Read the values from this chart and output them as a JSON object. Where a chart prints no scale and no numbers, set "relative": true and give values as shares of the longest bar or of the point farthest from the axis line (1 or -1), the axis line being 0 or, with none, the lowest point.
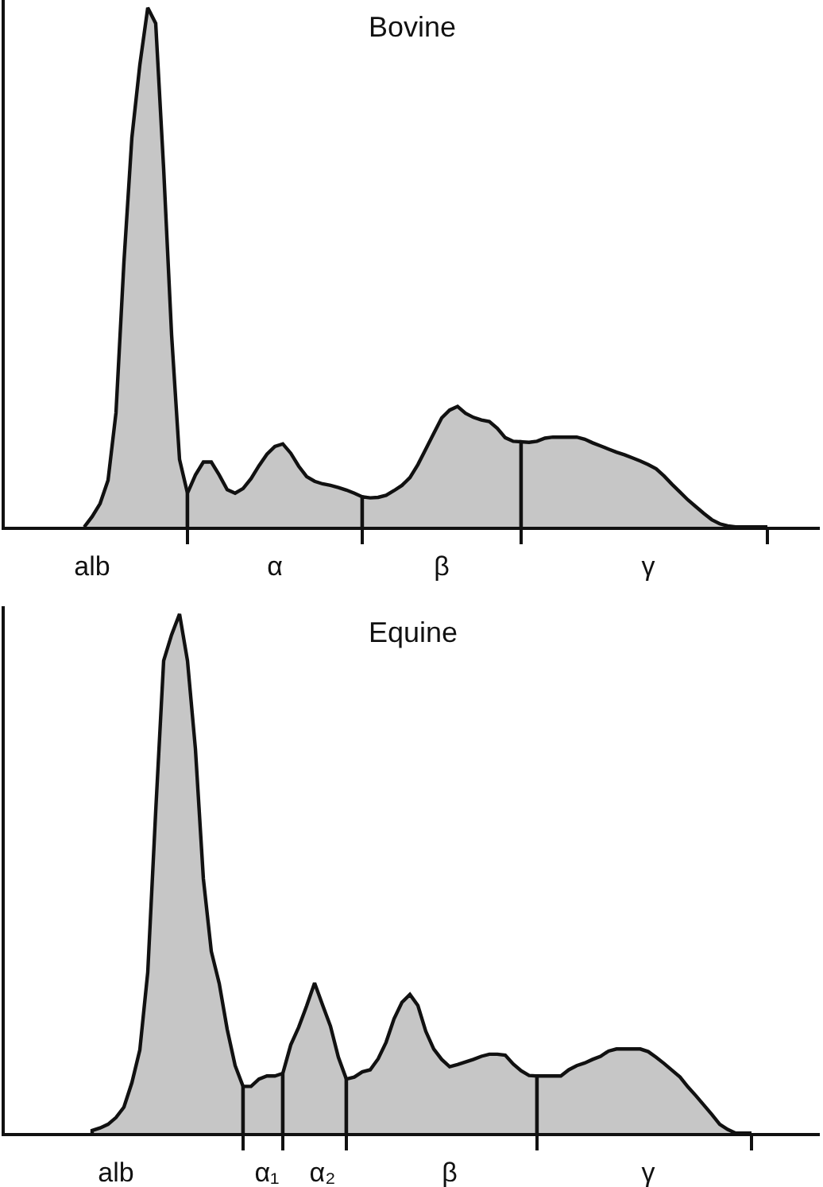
{
  "chart_data": [
    {
      "type": "area",
      "title": "Bovine",
      "relative": true,
      "tick_labels": "x",
      "categories": [
        null,
        null,
        null,
        null,
        null,
        null,
        null,
        null,
        null,
        null,
        null,
        "alb",
        null,
        null,
        null,
        null,
        null,
        null,
        null,
        null,
        null,
        null,
        null,
        null,
        null,
        null,
        null,
        null,
        null,
        null,
        null,
        null,
        null,
        null,
        "α",
        null,
        null,
        null,
        null,
        null,
        null,
        null,
        null,
        null,
        null,
        null,
        null,
        null,
        null,
        null,
        null,
        null,
        null,
        null,
        null,
        "β",
        null,
        null,
        null,
        null,
        null,
        null,
        null,
        null,
        null,
        null,
        null,
        null,
        null,
        null,
        null,
        null,
        null,
        null,
        null,
        null,
        null,
        null,
        null,
        null,
        null,
        "γ",
        null,
        null,
        null,
        null,
        null,
        null,
        null,
        null,
        null,
        null,
        null,
        null,
        null,
        null,
        null,
        null,
        null,
        null,
        null,
        null,
        null
      ],
      "series": [
        {
          "color": "#c6c6c6",
          "values": [
            null,
            null,
            null,
            null,
            null,
            null,
            null,
            null,
            null,
            null,
            0,
            0.02,
            0.045,
            0.09,
            0.22,
            0.51,
            0.75,
            0.89,
            1,
            0.97,
            0.69,
            0.37,
            0.13,
            0.065,
            null,
            null,
            null,
            null,
            null,
            null,
            null,
            null,
            null,
            null,
            null,
            null,
            null,
            null,
            null,
            null,
            null,
            null,
            null,
            null,
            null,
            null,
            null,
            null,
            null,
            null,
            null,
            null,
            null,
            null,
            null,
            null,
            null,
            null,
            null,
            null,
            null,
            null,
            null,
            null,
            null,
            null,
            null,
            null,
            null,
            null,
            null,
            null,
            null,
            null,
            null,
            null,
            null,
            null,
            null,
            null,
            null,
            null,
            null,
            null,
            null,
            null,
            null,
            null,
            null,
            null,
            null,
            null,
            null,
            null,
            null,
            null,
            null,
            null,
            null,
            null,
            null,
            null,
            null
          ]
        },
        {
          "color": "#c6c6c6",
          "values": [
            null,
            null,
            null,
            null,
            null,
            null,
            null,
            null,
            null,
            null,
            null,
            null,
            null,
            null,
            null,
            null,
            null,
            null,
            null,
            null,
            null,
            null,
            null,
            0.065,
            0.1,
            0.125,
            0.125,
            0.1,
            0.072,
            0.065,
            0.074,
            0.093,
            0.118,
            0.14,
            0.155,
            0.16,
            0.142,
            0.117,
            0.097,
            0.088,
            0.083,
            0.08,
            0.076,
            0.071,
            0.065,
            0.058,
            null,
            null,
            null,
            null,
            null,
            null,
            null,
            null,
            null,
            null,
            null,
            null,
            null,
            null,
            null,
            null,
            null,
            null,
            null,
            null,
            null,
            null,
            null,
            null,
            null,
            null,
            null,
            null,
            null,
            null,
            null,
            null,
            null,
            null,
            null,
            null,
            null,
            null,
            null,
            null,
            null,
            null,
            null,
            null,
            null,
            null,
            null,
            null,
            null,
            null,
            null,
            null,
            null,
            null,
            null,
            null,
            null
          ]
        },
        {
          "color": "#c6c6c6",
          "values": [
            null,
            null,
            null,
            null,
            null,
            null,
            null,
            null,
            null,
            null,
            null,
            null,
            null,
            null,
            null,
            null,
            null,
            null,
            null,
            null,
            null,
            null,
            null,
            null,
            null,
            null,
            null,
            null,
            null,
            null,
            null,
            null,
            null,
            null,
            null,
            null,
            null,
            null,
            null,
            null,
            null,
            null,
            null,
            null,
            null,
            0.058,
            0.056,
            0.057,
            0.061,
            0.07,
            0.08,
            0.095,
            0.12,
            0.15,
            0.18,
            0.21,
            0.225,
            0.232,
            0.219,
            0.211,
            0.206,
            0.203,
            0.19,
            0.172,
            0.165,
            0.164,
            null,
            null,
            null,
            null,
            null,
            null,
            null,
            null,
            null,
            null,
            null,
            null,
            null,
            null,
            null,
            null,
            null,
            null,
            null,
            null,
            null,
            null,
            null,
            null,
            null,
            null,
            null,
            null,
            null,
            null,
            null,
            null,
            null,
            null,
            null,
            null,
            null
          ]
        },
        {
          "color": "#c6c6c6",
          "values": [
            null,
            null,
            null,
            null,
            null,
            null,
            null,
            null,
            null,
            null,
            null,
            null,
            null,
            null,
            null,
            null,
            null,
            null,
            null,
            null,
            null,
            null,
            null,
            null,
            null,
            null,
            null,
            null,
            null,
            null,
            null,
            null,
            null,
            null,
            null,
            null,
            null,
            null,
            null,
            null,
            null,
            null,
            null,
            null,
            null,
            null,
            null,
            null,
            null,
            null,
            null,
            null,
            null,
            null,
            null,
            null,
            null,
            null,
            null,
            null,
            null,
            null,
            null,
            null,
            null,
            0.164,
            0.163,
            0.165,
            0.171,
            0.173,
            0.173,
            0.173,
            0.173,
            0.169,
            0.162,
            0.156,
            0.15,
            0.144,
            0.139,
            0.133,
            0.127,
            0.12,
            0.112,
            0.098,
            0.082,
            0.067,
            0.052,
            0.039,
            0.026,
            0.014,
            0.006,
            0.002,
            0,
            0,
            0,
            0,
            0,
            null,
            null,
            null,
            null,
            null,
            null
          ]
        }
      ]
    },
    {
      "type": "area",
      "title": "Equine",
      "relative": true,
      "tick_labels": "x",
      "categories": [
        null,
        null,
        null,
        null,
        null,
        null,
        null,
        null,
        null,
        null,
        null,
        null,
        null,
        null,
        "alb",
        null,
        null,
        null,
        null,
        null,
        null,
        null,
        null,
        null,
        null,
        null,
        null,
        null,
        null,
        null,
        null,
        null,
        null,
        "α₁",
        null,
        null,
        null,
        null,
        null,
        null,
        "α₂",
        null,
        null,
        null,
        null,
        null,
        null,
        null,
        null,
        null,
        null,
        null,
        null,
        null,
        null,
        null,
        "β",
        null,
        null,
        null,
        null,
        null,
        null,
        null,
        null,
        null,
        null,
        null,
        null,
        null,
        null,
        null,
        null,
        null,
        null,
        null,
        null,
        null,
        null,
        null,
        null,
        "γ",
        null,
        null,
        null,
        null,
        null,
        null,
        null,
        null,
        null,
        null,
        null,
        null,
        null,
        null,
        null,
        null,
        null,
        null,
        null,
        null,
        null
      ],
      "series": [
        {
          "color": "#c6c6c6",
          "values": [
            null,
            null,
            null,
            null,
            null,
            null,
            null,
            null,
            null,
            null,
            null,
            0.005,
            0.01,
            0.017,
            0.03,
            0.05,
            0.097,
            0.16,
            0.31,
            0.62,
            0.91,
            0.96,
            1,
            0.91,
            0.74,
            0.49,
            0.35,
            0.288,
            0.2,
            0.13,
            0.09,
            null,
            null,
            null,
            null,
            null,
            null,
            null,
            null,
            null,
            null,
            null,
            null,
            null,
            null,
            null,
            null,
            null,
            null,
            null,
            null,
            null,
            null,
            null,
            null,
            null,
            null,
            null,
            null,
            null,
            null,
            null,
            null,
            null,
            null,
            null,
            null,
            null,
            null,
            null,
            null,
            null,
            null,
            null,
            null,
            null,
            null,
            null,
            null,
            null,
            null,
            null,
            null,
            null,
            null,
            null,
            null,
            null,
            null,
            null,
            null,
            null,
            null,
            null,
            null,
            null,
            null,
            null,
            null,
            null,
            null,
            null,
            null
          ]
        },
        {
          "color": "#c6c6c6",
          "values": [
            null,
            null,
            null,
            null,
            null,
            null,
            null,
            null,
            null,
            null,
            null,
            null,
            null,
            null,
            null,
            null,
            null,
            null,
            null,
            null,
            null,
            null,
            null,
            null,
            null,
            null,
            null,
            null,
            null,
            null,
            0.09,
            0.09,
            0.104,
            0.11,
            0.11,
            0.115,
            null,
            null,
            null,
            null,
            null,
            null,
            null,
            null,
            null,
            null,
            null,
            null,
            null,
            null,
            null,
            null,
            null,
            null,
            null,
            null,
            null,
            null,
            null,
            null,
            null,
            null,
            null,
            null,
            null,
            null,
            null,
            null,
            null,
            null,
            null,
            null,
            null,
            null,
            null,
            null,
            null,
            null,
            null,
            null,
            null,
            null,
            null,
            null,
            null,
            null,
            null,
            null,
            null,
            null,
            null,
            null,
            null,
            null,
            null,
            null,
            null,
            null,
            null,
            null,
            null,
            null,
            null
          ]
        },
        {
          "color": "#c6c6c6",
          "values": [
            null,
            null,
            null,
            null,
            null,
            null,
            null,
            null,
            null,
            null,
            null,
            null,
            null,
            null,
            null,
            null,
            null,
            null,
            null,
            null,
            null,
            null,
            null,
            null,
            null,
            null,
            null,
            null,
            null,
            null,
            null,
            null,
            null,
            null,
            null,
            0.115,
            0.17,
            0.204,
            0.245,
            0.289,
            0.247,
            0.206,
            0.146,
            0.104,
            null,
            null,
            null,
            null,
            null,
            null,
            null,
            null,
            null,
            null,
            null,
            null,
            null,
            null,
            null,
            null,
            null,
            null,
            null,
            null,
            null,
            null,
            null,
            null,
            null,
            null,
            null,
            null,
            null,
            null,
            null,
            null,
            null,
            null,
            null,
            null,
            null,
            null,
            null,
            null,
            null,
            null,
            null,
            null,
            null,
            null,
            null,
            null,
            null,
            null,
            null,
            null,
            null,
            null,
            null,
            null,
            null,
            null,
            null
          ]
        },
        {
          "color": "#c6c6c6",
          "values": [
            null,
            null,
            null,
            null,
            null,
            null,
            null,
            null,
            null,
            null,
            null,
            null,
            null,
            null,
            null,
            null,
            null,
            null,
            null,
            null,
            null,
            null,
            null,
            null,
            null,
            null,
            null,
            null,
            null,
            null,
            null,
            null,
            null,
            null,
            null,
            null,
            null,
            null,
            null,
            null,
            null,
            null,
            null,
            0.104,
            0.108,
            0.118,
            0.122,
            0.143,
            0.175,
            0.22,
            0.252,
            0.267,
            0.246,
            0.196,
            0.162,
            0.142,
            0.128,
            0.132,
            0.137,
            0.142,
            0.148,
            0.152,
            0.152,
            0.15,
            0.133,
            0.12,
            0.111,
            0.11,
            null,
            null,
            null,
            null,
            null,
            null,
            null,
            null,
            null,
            null,
            null,
            null,
            null,
            null,
            null,
            null,
            null,
            null,
            null,
            null,
            null,
            null,
            null,
            null,
            null,
            null,
            null,
            null,
            null,
            null,
            null,
            null,
            null,
            null,
            null
          ]
        },
        {
          "color": "#c6c6c6",
          "values": [
            null,
            null,
            null,
            null,
            null,
            null,
            null,
            null,
            null,
            null,
            null,
            null,
            null,
            null,
            null,
            null,
            null,
            null,
            null,
            null,
            null,
            null,
            null,
            null,
            null,
            null,
            null,
            null,
            null,
            null,
            null,
            null,
            null,
            null,
            null,
            null,
            null,
            null,
            null,
            null,
            null,
            null,
            null,
            null,
            null,
            null,
            null,
            null,
            null,
            null,
            null,
            null,
            null,
            null,
            null,
            null,
            null,
            null,
            null,
            null,
            null,
            null,
            null,
            null,
            null,
            null,
            null,
            0.11,
            0.11,
            0.11,
            0.11,
            0.122,
            0.13,
            0.135,
            0.142,
            0.148,
            0.158,
            0.162,
            0.162,
            0.162,
            0.162,
            0.157,
            0.146,
            0.134,
            0.121,
            0.108,
            0.089,
            0.072,
            0.054,
            0.036,
            0.017,
            0.007,
            0,
            0,
            0,
            null,
            null,
            null,
            null,
            null,
            null,
            null,
            null
          ]
        }
      ]
    }
  ]
}
